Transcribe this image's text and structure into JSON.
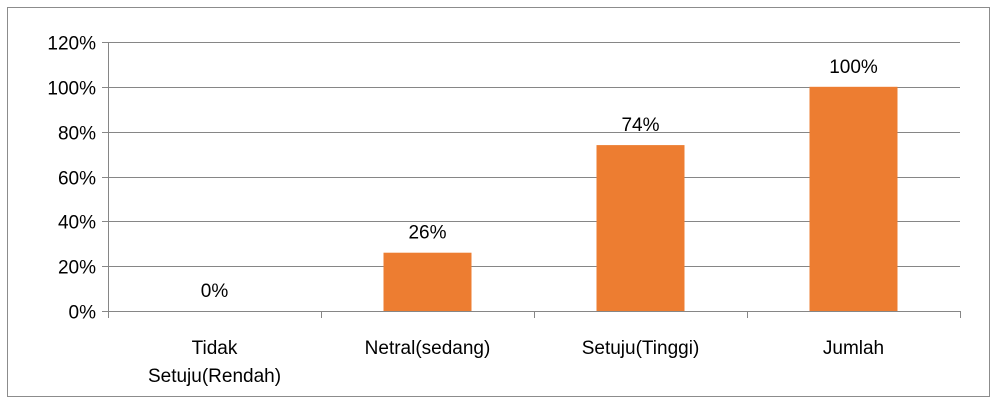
{
  "chart_data": {
    "type": "bar",
    "categories": [
      "Tidak Setuju(Rendah)",
      "Netral(sedang)",
      "Setuju(Tinggi)",
      "Jumlah"
    ],
    "category_lines": [
      [
        "Tidak",
        "Setuju(Rendah)"
      ],
      [
        "Netral(sedang)"
      ],
      [
        "Setuju(Tinggi)"
      ],
      [
        "Jumlah"
      ]
    ],
    "values": [
      0,
      26,
      74,
      100
    ],
    "data_labels": [
      "0%",
      "26%",
      "74%",
      "100%"
    ],
    "title": "",
    "xlabel": "",
    "ylabel": "",
    "ylim": [
      0,
      120
    ],
    "yticks": [
      0,
      20,
      40,
      60,
      80,
      100,
      120
    ],
    "ytick_labels": [
      "0%",
      "20%",
      "40%",
      "60%",
      "80%",
      "100%",
      "120%"
    ],
    "grid": true,
    "legend": "none",
    "bar_color": "#ED7D31",
    "grid_color": "#868686",
    "border_color": "#8c8c8c"
  }
}
